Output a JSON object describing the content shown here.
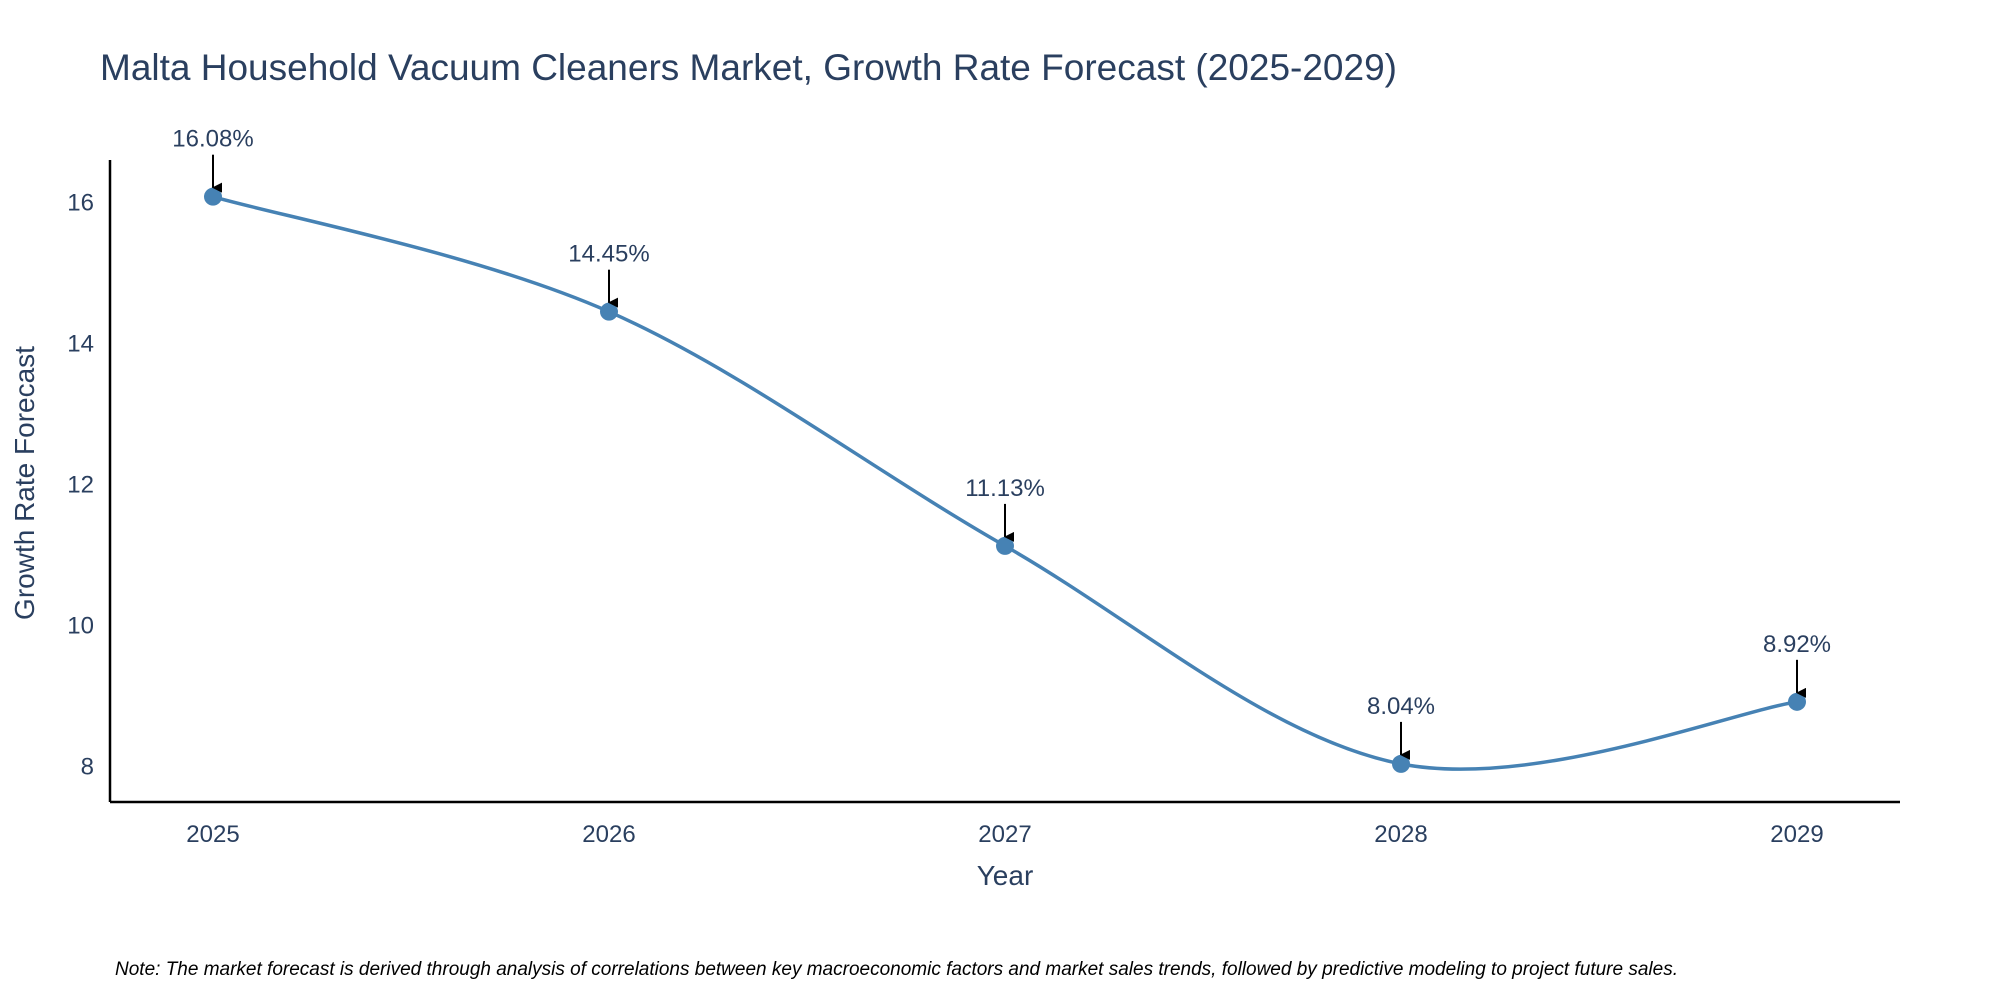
{
  "colors": {
    "line": "#4682B4",
    "marker": "#4682B4",
    "axis": "#000000",
    "text": "#2a3f5f",
    "annotation_arrow": "#000000"
  },
  "chart_data": {
    "type": "line",
    "title": "Malta Household Vacuum Cleaners Market, Growth Rate Forecast (2025-2029)",
    "xlabel": "Year",
    "ylabel": "Growth Rate Forecast",
    "categories": [
      "2025",
      "2026",
      "2027",
      "2028",
      "2029"
    ],
    "series": [
      {
        "name": "Growth Rate Forecast",
        "values": [
          16.08,
          14.45,
          11.13,
          8.04,
          8.92
        ],
        "labels": [
          "16.08%",
          "14.45%",
          "11.13%",
          "8.04%",
          "8.92%"
        ]
      }
    ],
    "y_ticks": [
      8,
      10,
      12,
      14,
      16
    ],
    "ylim": [
      7.5,
      16.6
    ],
    "line_shape": "spline",
    "grid": false
  },
  "note": "Note: The market forecast is derived through analysis of correlations between key macroeconomic factors and market sales trends, followed by predictive modeling to project future sales."
}
